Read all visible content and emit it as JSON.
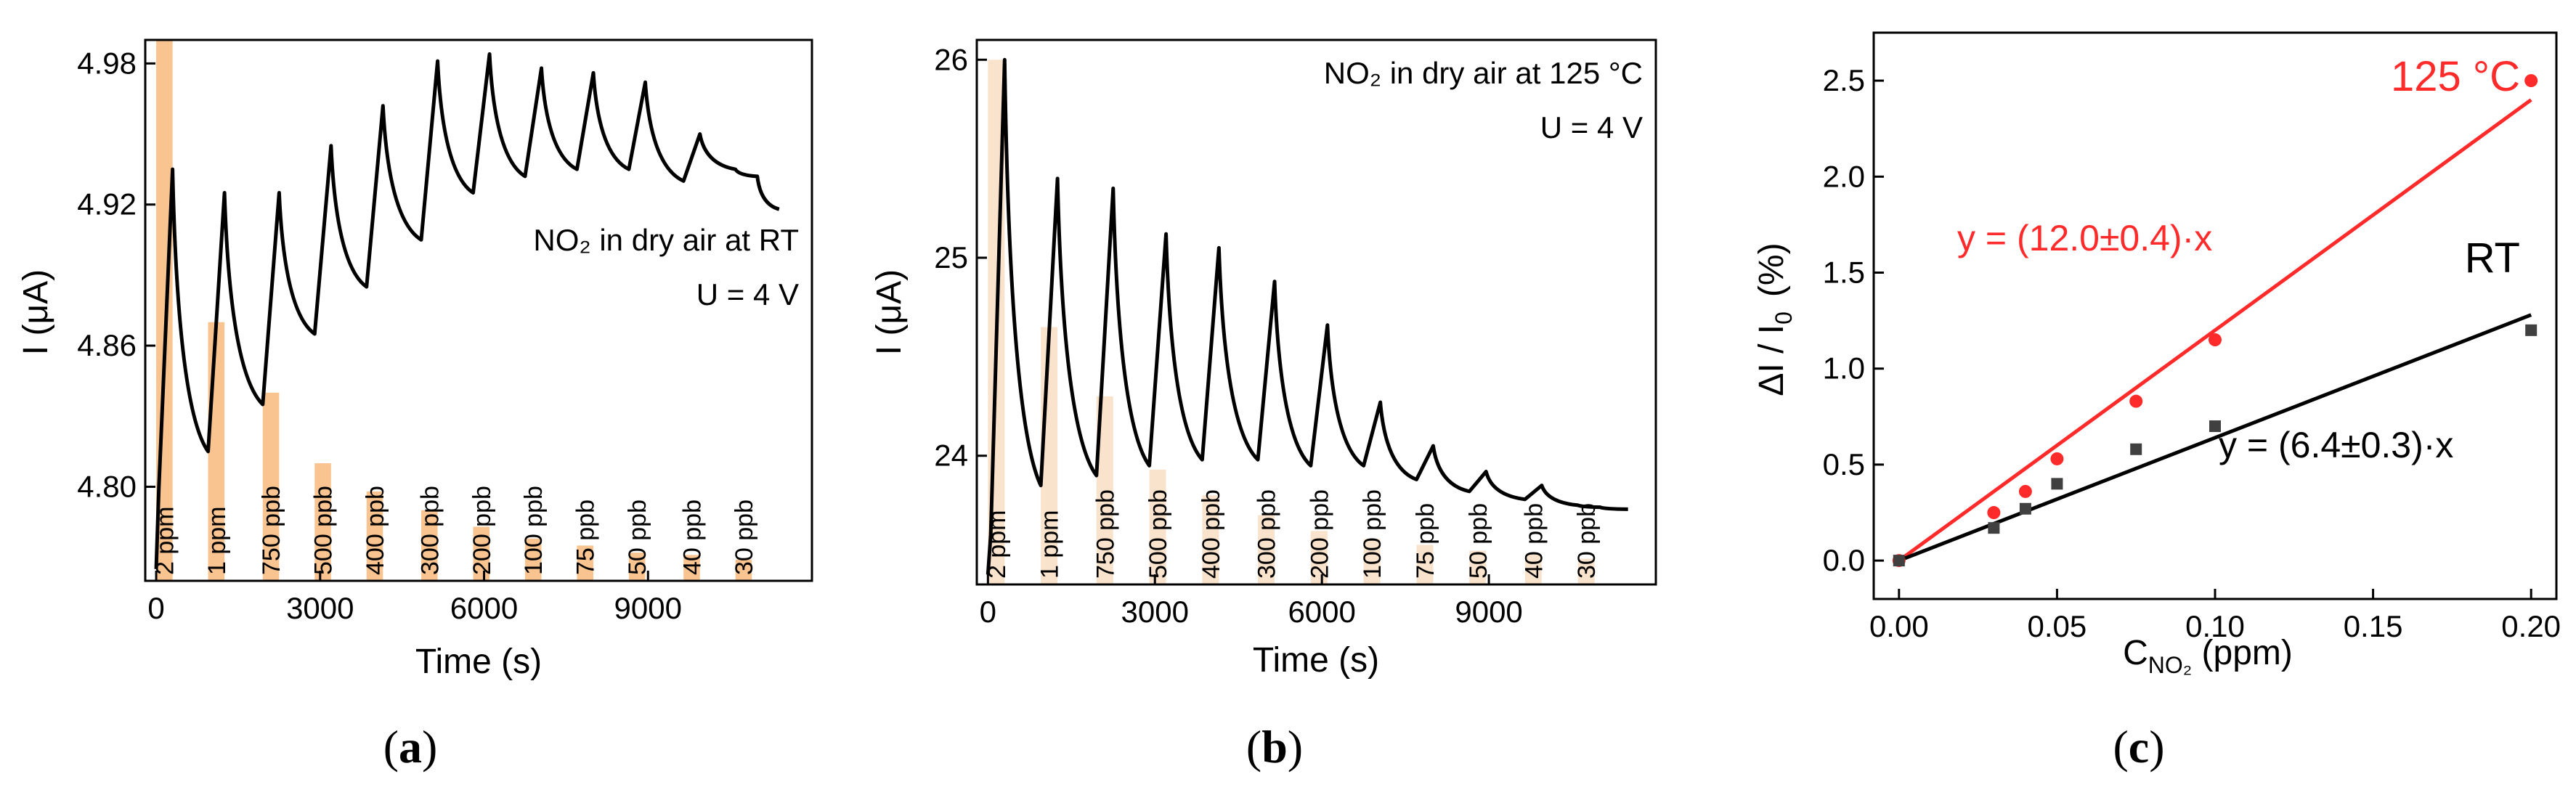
{
  "chart_data": [
    {
      "type": "line",
      "panel_label": "a",
      "xlabel": "Time (s)",
      "ylabel": "I (μA)",
      "xlim": [
        -200,
        12000
      ],
      "ylim": [
        4.76,
        4.99
      ],
      "xticks": [
        0,
        3000,
        6000,
        9000
      ],
      "yticks": [
        4.8,
        4.86,
        4.92,
        4.98
      ],
      "annotation_gas": "NO₂ in dry air at RT",
      "annotation_voltage": "U = 4 V",
      "pulses": [
        {
          "label": "2 ppm",
          "start": 0,
          "end": 300,
          "bar_top": 4.99
        },
        {
          "label": "1 ppm",
          "start": 950,
          "end": 1250,
          "bar_top": 4.87
        },
        {
          "label": "750 ppb",
          "start": 1950,
          "end": 2250,
          "bar_top": 4.84
        },
        {
          "label": "500 ppb",
          "start": 2900,
          "end": 3200,
          "bar_top": 4.81
        },
        {
          "label": "400 ppb",
          "start": 3850,
          "end": 4150,
          "bar_top": 4.798
        },
        {
          "label": "300 ppb",
          "start": 4850,
          "end": 5150,
          "bar_top": 4.79
        },
        {
          "label": "200 ppb",
          "start": 5800,
          "end": 6100,
          "bar_top": 4.783
        },
        {
          "label": "100 ppb",
          "start": 6750,
          "end": 7050,
          "bar_top": 4.778
        },
        {
          "label": "75 ppb",
          "start": 7700,
          "end": 8000,
          "bar_top": 4.775
        },
        {
          "label": "50 ppb",
          "start": 8650,
          "end": 8950,
          "bar_top": 4.772
        },
        {
          "label": "40 ppb",
          "start": 9650,
          "end": 9950,
          "bar_top": 4.771
        },
        {
          "label": "30 ppb",
          "start": 10600,
          "end": 10900,
          "bar_top": 4.769
        }
      ],
      "series": [
        {
          "name": "current",
          "x": [
            0,
            50,
            300,
            950,
            1250,
            1950,
            2250,
            2900,
            3200,
            3850,
            4150,
            4850,
            5150,
            5800,
            6100,
            6750,
            7050,
            7700,
            8000,
            8650,
            8950,
            9650,
            9950,
            10600,
            11000,
            11400
          ],
          "y": [
            4.765,
            4.8,
            4.935,
            4.815,
            4.925,
            4.835,
            4.925,
            4.865,
            4.945,
            4.885,
            4.962,
            4.905,
            4.981,
            4.925,
            4.984,
            4.932,
            4.978,
            4.935,
            4.976,
            4.935,
            4.972,
            4.93,
            4.95,
            4.935,
            4.932,
            4.918
          ]
        }
      ]
    },
    {
      "type": "line",
      "panel_label": "b",
      "xlabel": "Time (s)",
      "ylabel": "I (μA)",
      "xlim": [
        -200,
        12000
      ],
      "ylim": [
        23.35,
        26.1
      ],
      "xticks": [
        0,
        3000,
        6000,
        9000
      ],
      "yticks": [
        24,
        25,
        26
      ],
      "annotation_gas": "NO₂ in dry air at 125 °C",
      "annotation_voltage": "U = 4 V",
      "pulses": [
        {
          "label": "2 ppm",
          "start": 0,
          "end": 300,
          "bar_top": 26.0
        },
        {
          "label": "1 ppm",
          "start": 950,
          "end": 1250,
          "bar_top": 24.65
        },
        {
          "label": "750 ppb",
          "start": 1950,
          "end": 2250,
          "bar_top": 24.3
        },
        {
          "label": "500 ppb",
          "start": 2900,
          "end": 3200,
          "bar_top": 23.93
        },
        {
          "label": "400 ppb",
          "start": 3850,
          "end": 4150,
          "bar_top": 23.8
        },
        {
          "label": "300 ppb",
          "start": 4850,
          "end": 5150,
          "bar_top": 23.7
        },
        {
          "label": "200 ppb",
          "start": 5800,
          "end": 6100,
          "bar_top": 23.62
        },
        {
          "label": "100 ppb",
          "start": 6750,
          "end": 7050,
          "bar_top": 23.58
        },
        {
          "label": "75 ppb",
          "start": 7700,
          "end": 8000,
          "bar_top": 23.55
        },
        {
          "label": "50 ppb",
          "start": 8650,
          "end": 8950,
          "bar_top": 23.52
        },
        {
          "label": "40 ppb",
          "start": 9650,
          "end": 9950,
          "bar_top": 23.5
        },
        {
          "label": "30 ppb",
          "start": 10600,
          "end": 10900,
          "bar_top": 23.48
        }
      ],
      "series": [
        {
          "name": "current",
          "x": [
            0,
            50,
            300,
            950,
            1250,
            1950,
            2250,
            2900,
            3200,
            3850,
            4150,
            4850,
            5150,
            5800,
            6100,
            6750,
            7050,
            7700,
            8000,
            8650,
            8950,
            9650,
            9950,
            10600,
            11000,
            11500
          ],
          "y": [
            23.4,
            23.6,
            26.0,
            23.85,
            25.4,
            23.9,
            25.35,
            23.95,
            25.12,
            23.98,
            25.05,
            23.98,
            24.88,
            23.95,
            24.66,
            23.95,
            24.27,
            23.88,
            24.05,
            23.82,
            23.92,
            23.78,
            23.85,
            23.75,
            23.74,
            23.73
          ]
        }
      ]
    },
    {
      "type": "scatter",
      "panel_label": "c",
      "xlabel_main": "C",
      "xlabel_sub": "NO₂",
      "xlabel_unit": " (ppm)",
      "ylabel_main": "ΔI / I",
      "ylabel_sub": "0",
      "ylabel_unit": "(%)",
      "xlim": [
        -0.008,
        0.208
      ],
      "ylim": [
        -0.2,
        2.75
      ],
      "xticks": [
        0.0,
        0.05,
        0.1,
        0.15,
        0.2
      ],
      "xtick_labels": [
        "0.00",
        "0.05",
        "0.10",
        "0.15",
        "0.20"
      ],
      "yticks": [
        0.0,
        0.5,
        1.0,
        1.5,
        2.0,
        2.5
      ],
      "ytick_labels": [
        "0.0",
        "0.5",
        "1.0",
        "1.5",
        "2.0",
        "2.5"
      ],
      "series": [
        {
          "name": "125 °C",
          "color": "#ff2a2a",
          "marker": "circle",
          "x": [
            0.0,
            0.03,
            0.04,
            0.05,
            0.075,
            0.1,
            0.2
          ],
          "y": [
            0.0,
            0.25,
            0.36,
            0.53,
            0.83,
            1.15,
            2.5
          ],
          "fit_slope": 12.0,
          "fit_label": "y = (12.0±0.4)·x"
        },
        {
          "name": "RT",
          "color": "#404040",
          "marker": "square",
          "x": [
            0.0,
            0.03,
            0.04,
            0.05,
            0.075,
            0.1,
            0.2
          ],
          "y": [
            0.0,
            0.17,
            0.27,
            0.4,
            0.58,
            0.7,
            1.2
          ],
          "fit_slope": 6.4,
          "fit_label": "y = (6.4±0.3)·x"
        }
      ],
      "label_125": "125 °C",
      "label_rt": "RT"
    }
  ],
  "captions": [
    "(a)",
    "(b)",
    "(c)"
  ],
  "colors": {
    "bar_a": "#f9c48f",
    "bar_b": "#fae3cc",
    "red": "#ff2a2a",
    "black": "#000000"
  }
}
